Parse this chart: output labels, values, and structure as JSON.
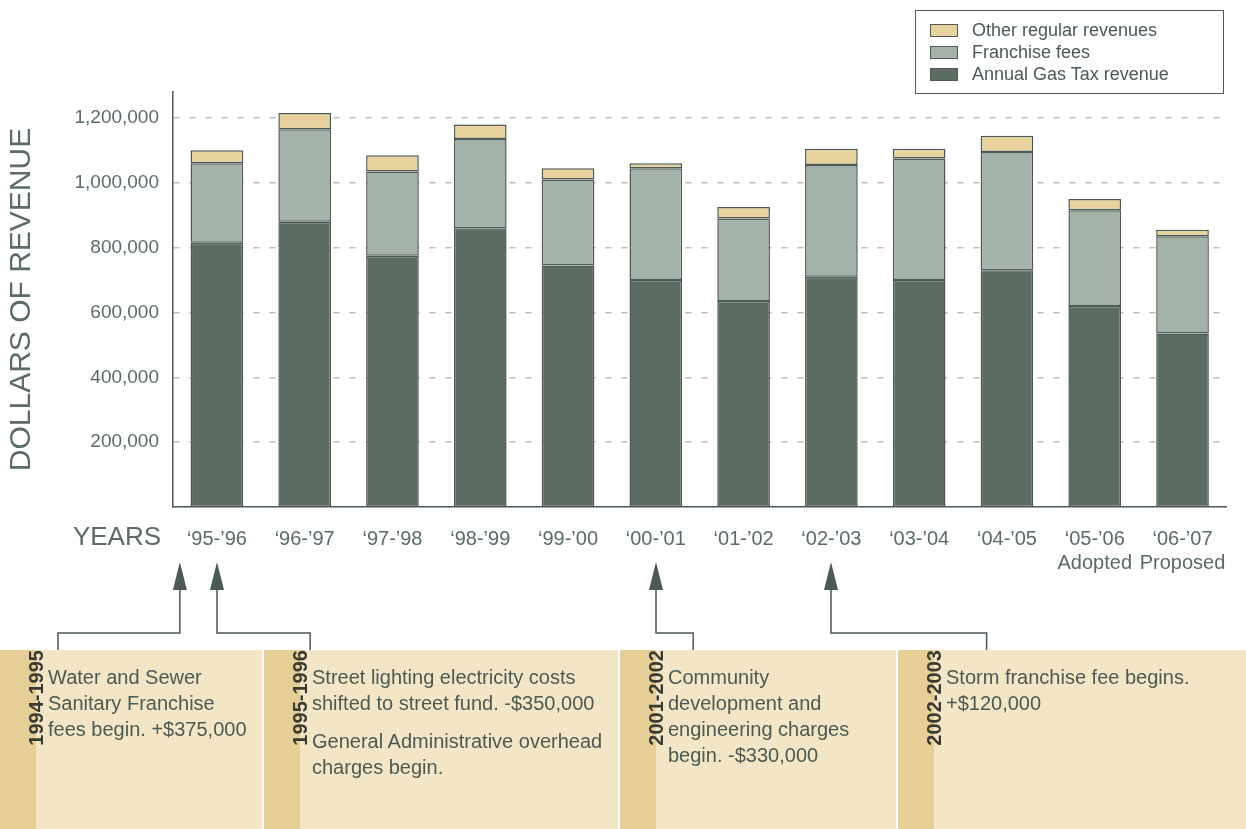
{
  "chart_data": {
    "type": "bar",
    "stacked": true,
    "xlabel": "YEARS",
    "ylabel": "DOLLARS OF REVENUE",
    "categories": [
      "‘95-’96",
      "‘96-’97",
      "‘97-’98",
      "‘98-’99",
      "‘99-’00",
      "‘00-’01",
      "‘01-’02",
      "‘02-’03",
      "‘03-’04",
      "‘04-’05",
      "‘05-’06\nAdopted",
      "‘06-’07\nProposed"
    ],
    "series": [
      {
        "name": "Annual Gas Tax revenue",
        "color": "#5b6c62",
        "values": [
          815000,
          880000,
          775000,
          860000,
          745000,
          700000,
          635000,
          710000,
          700000,
          730000,
          620000,
          535000
        ]
      },
      {
        "name": "Franchise fees",
        "color": "#a4b2aa",
        "values": [
          245000,
          285000,
          260000,
          275000,
          265000,
          345000,
          255000,
          345000,
          375000,
          365000,
          295000,
          300000
        ]
      },
      {
        "name": "Other regular revenues",
        "color": "#e8d29e",
        "values": [
          40000,
          50000,
          50000,
          45000,
          35000,
          15000,
          35000,
          50000,
          30000,
          50000,
          35000,
          20000
        ]
      }
    ],
    "ylim": [
      0,
      1280000
    ],
    "yticks": [
      {
        "value": 200000,
        "label": "200,000"
      },
      {
        "value": 400000,
        "label": "400,000"
      },
      {
        "value": 600000,
        "label": "600,000"
      },
      {
        "value": 800000,
        "label": "800,000"
      },
      {
        "value": 1000000,
        "label": "1,000,000"
      },
      {
        "value": 1200000,
        "label": "1,200,000"
      }
    ],
    "grid": "y",
    "legend": "top right",
    "annotations": [
      "1994-1995",
      "Water and Sewer Sanitary Franchise fees begin. +$375,000",
      "1995-1996",
      "Street lighting electricity costs shifted to street fund. -$350,000",
      "General Administrative overhead charges begin.",
      "2001-2002",
      "Community development and engineering charges begin. -$330,000",
      "2002-2003",
      "Storm franchise fee begins. +$120,000"
    ]
  }
}
